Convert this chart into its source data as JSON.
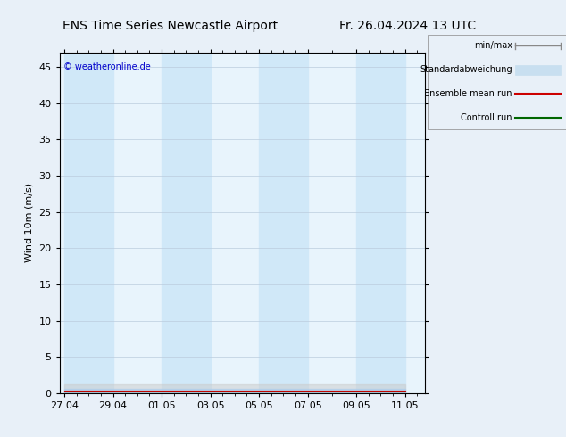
{
  "title_left": "ENS Time Series Newcastle Airport",
  "title_right": "Fr. 26.04.2024 13 UTC",
  "ylabel": "Wind 10m (m/s)",
  "copyright": "© weatheronline.de",
  "ylim": [
    0,
    47
  ],
  "yticks": [
    0,
    5,
    10,
    15,
    20,
    25,
    30,
    35,
    40,
    45
  ],
  "x_dates": [
    "27.04",
    "29.04",
    "01.05",
    "03.05",
    "05.05",
    "07.05",
    "09.05",
    "11.05"
  ],
  "x_numeric": [
    0,
    2,
    4,
    6,
    8,
    10,
    12,
    14
  ],
  "xlim": [
    -0.2,
    14.8
  ],
  "band_color_dark": "#d0e8f8",
  "band_color_light": "#e8f4fc",
  "background_color": "#e8f0f8",
  "legend_items": [
    "min/max",
    "Standardabweichung",
    "Ensemble mean run",
    "Controll run"
  ],
  "legend_colors": [
    "#aaaaaa",
    "#c8dff0",
    "#cc0000",
    "#006600"
  ],
  "title_fontsize": 10,
  "axis_fontsize": 8,
  "tick_fontsize": 8
}
